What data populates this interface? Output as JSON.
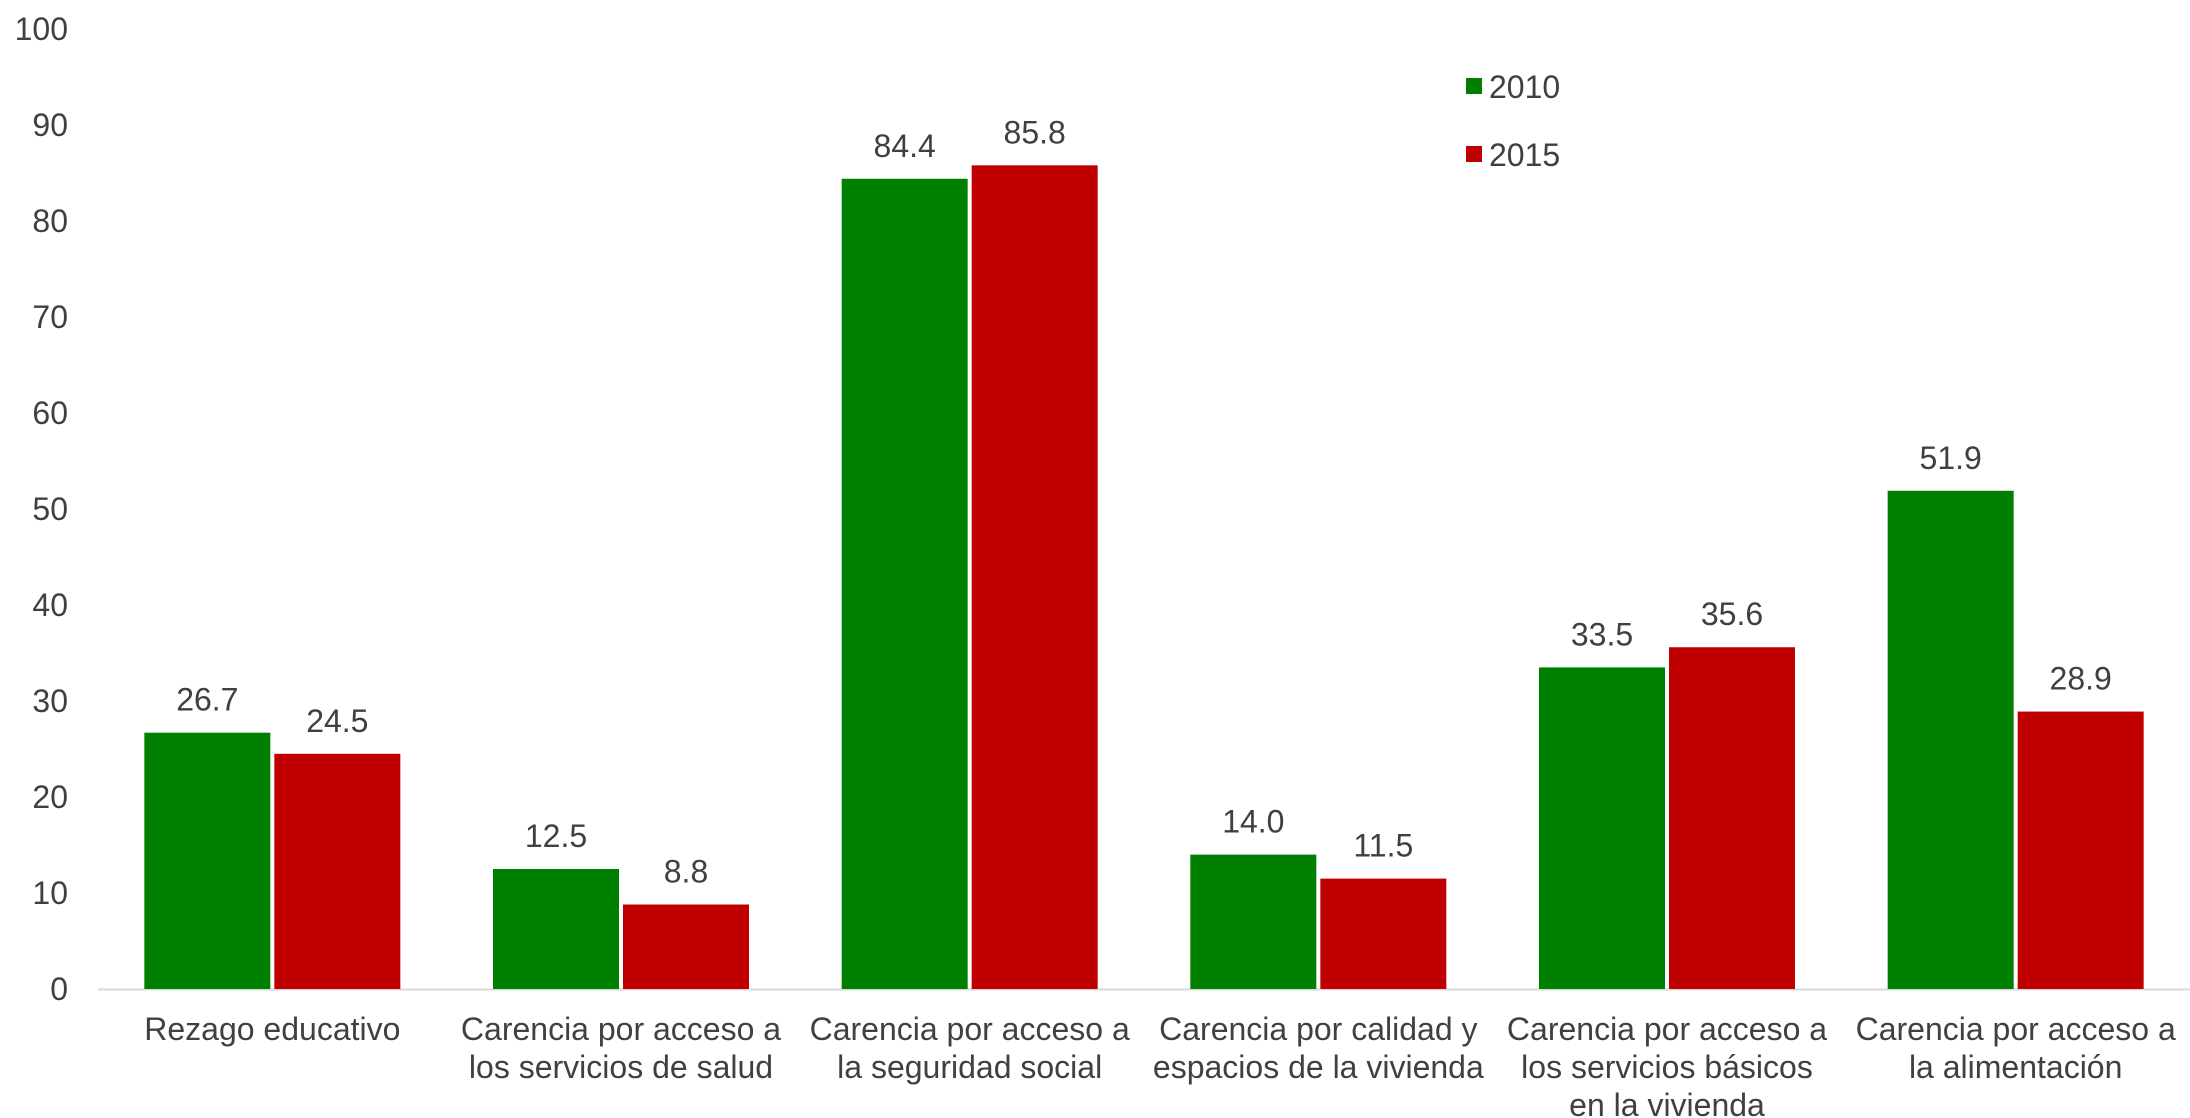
{
  "chart_data": {
    "type": "bar",
    "title": "",
    "xlabel": "",
    "ylabel": "",
    "ylim": [
      0,
      100
    ],
    "yticks": [
      0,
      10,
      20,
      30,
      40,
      50,
      60,
      70,
      80,
      90,
      100
    ],
    "grid": false,
    "legend_position": "top-right",
    "categories": [
      [
        "Rezago educativo"
      ],
      [
        "Carencia por acceso a",
        "los servicios de salud"
      ],
      [
        "Carencia por acceso a",
        "la seguridad social"
      ],
      [
        "Carencia por calidad y",
        "espacios de la vivienda"
      ],
      [
        "Carencia por acceso a",
        "los servicios básicos",
        "en la vivienda"
      ],
      [
        "Carencia por acceso a",
        "la alimentación"
      ]
    ],
    "series": [
      {
        "name": "2010",
        "color": "#008000",
        "values": [
          26.7,
          12.5,
          84.4,
          14.0,
          33.5,
          51.9
        ]
      },
      {
        "name": "2015",
        "color": "#C00000",
        "values": [
          24.5,
          8.8,
          85.8,
          11.5,
          35.6,
          28.9
        ]
      }
    ],
    "value_format_decimals": 1
  }
}
